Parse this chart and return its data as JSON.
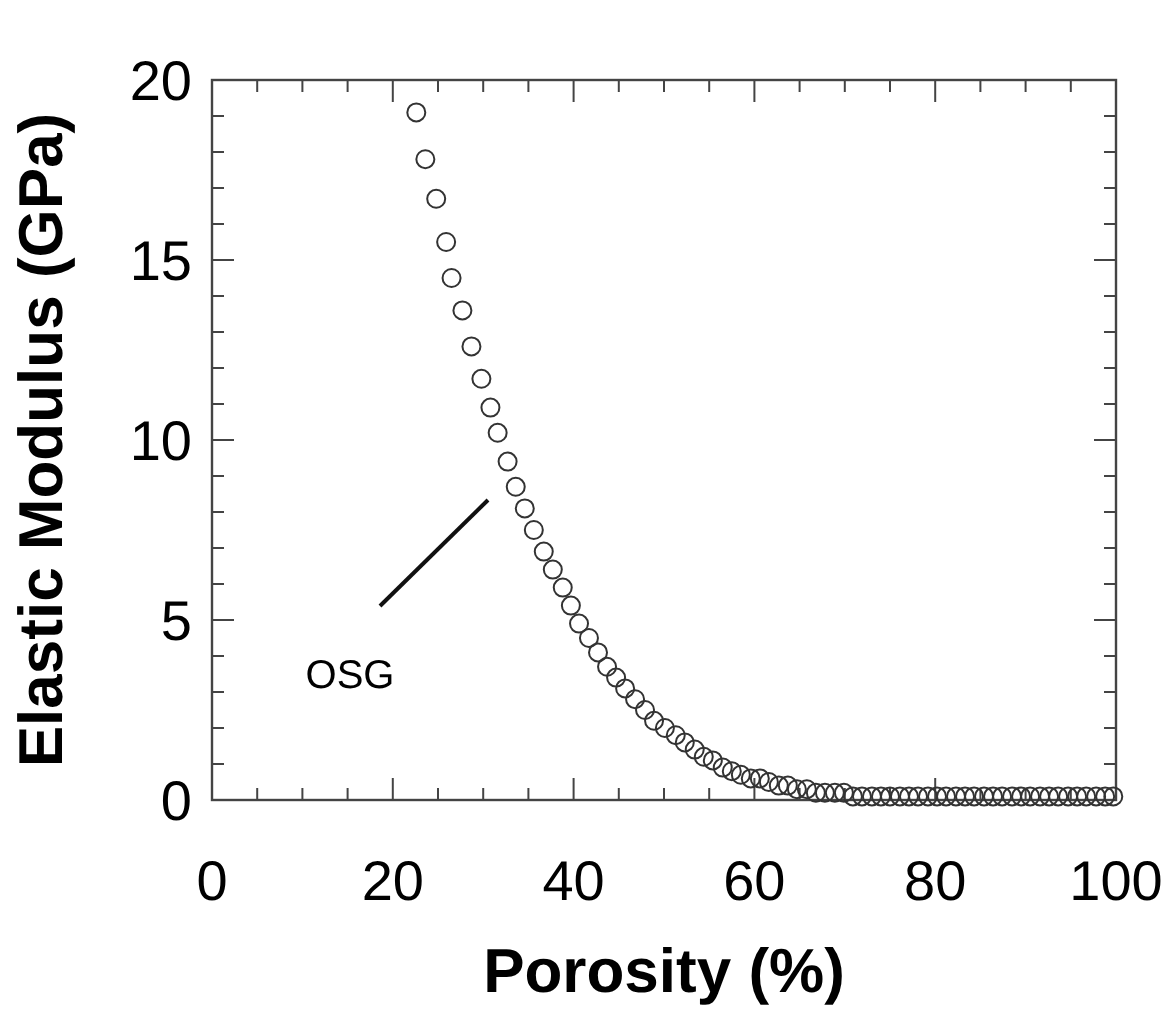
{
  "chart_data": {
    "type": "scatter",
    "xlabel": "Porosity (%)",
    "ylabel": "Elastic Modulus (GPa)",
    "marker": "circle",
    "xlim": [
      0,
      100
    ],
    "ylim": [
      0,
      20
    ],
    "xticks": [
      0,
      {
        "value": 5,
        "label": null
      },
      {
        "value": 10,
        "label": null
      },
      {
        "value": 15,
        "label": null
      },
      20,
      {
        "value": 25,
        "label": null
      },
      {
        "value": 30,
        "label": null
      },
      {
        "value": 35,
        "label": null
      },
      40,
      {
        "value": 45,
        "label": null
      },
      {
        "value": 50,
        "label": null
      },
      {
        "value": 55,
        "label": null
      },
      60,
      {
        "value": 65,
        "label": null
      },
      {
        "value": 70,
        "label": null
      },
      {
        "value": 75,
        "label": null
      },
      80,
      {
        "value": 85,
        "label": null
      },
      {
        "value": 90,
        "label": null
      },
      {
        "value": 95,
        "label": null
      },
      100
    ],
    "yticks": [
      0,
      {
        "value": 1,
        "label": null
      },
      {
        "value": 2,
        "label": null
      },
      {
        "value": 3,
        "label": null
      },
      {
        "value": 4,
        "label": null
      },
      5,
      {
        "value": 6,
        "label": null
      },
      {
        "value": 7,
        "label": null
      },
      {
        "value": 8,
        "label": null
      },
      {
        "value": 9,
        "label": null
      },
      10,
      {
        "value": 11,
        "label": null
      },
      {
        "value": 12,
        "label": null
      },
      {
        "value": 13,
        "label": null
      },
      {
        "value": 14,
        "label": null
      },
      15,
      {
        "value": 16,
        "label": null
      },
      {
        "value": 17,
        "label": null
      },
      {
        "value": 18,
        "label": null
      },
      {
        "value": 19,
        "label": null
      },
      20
    ],
    "annotations": [
      "OSG"
    ],
    "series": [
      {
        "color": "#333333",
        "x": [
          22.6,
          23.6,
          24.8,
          25.9,
          26.5,
          27.7,
          28.7,
          29.8,
          30.8,
          31.6,
          32.7,
          33.6,
          34.6,
          35.6,
          36.7,
          37.7,
          38.8,
          39.7,
          40.6,
          41.7,
          42.7,
          43.7,
          44.7,
          45.7,
          46.8,
          47.9,
          48.9,
          50.1,
          51.3,
          52.3,
          53.4,
          54.4,
          55.4,
          56.5,
          57.5,
          58.5,
          59.6,
          60.6,
          61.6,
          62.7,
          63.7,
          64.7,
          65.8,
          66.8,
          67.8,
          68.9,
          69.9,
          70.9,
          71.9,
          73.0,
          74.0,
          75.0,
          76.1,
          77.1,
          78.1,
          79.2,
          80.2,
          81.2,
          82.3,
          83.3,
          84.3,
          85.4,
          86.4,
          87.4,
          88.5,
          89.5,
          90.5,
          91.6,
          92.6,
          93.6,
          94.7,
          95.7,
          96.7,
          97.8,
          98.8,
          99.7
        ],
        "values": [
          19.1,
          17.8,
          16.7,
          15.5,
          14.5,
          13.6,
          12.6,
          11.7,
          10.9,
          10.2,
          9.4,
          8.7,
          8.1,
          7.5,
          6.9,
          6.4,
          5.9,
          5.4,
          4.9,
          4.5,
          4.1,
          3.7,
          3.4,
          3.1,
          2.8,
          2.5,
          2.2,
          2.0,
          1.8,
          1.6,
          1.4,
          1.2,
          1.1,
          0.9,
          0.8,
          0.7,
          0.6,
          0.6,
          0.5,
          0.4,
          0.4,
          0.3,
          0.3,
          0.2,
          0.2,
          0.2,
          0.2,
          0.1,
          0.1,
          0.1,
          0.1,
          0.1,
          0.1,
          0.1,
          0.1,
          0.1,
          0.1,
          0.1,
          0.1,
          0.1,
          0.1,
          0.1,
          0.1,
          0.1,
          0.1,
          0.1,
          0.1,
          0.1,
          0.1,
          0.1,
          0.1,
          0.1,
          0.1,
          0.1,
          0.1,
          0.1
        ]
      }
    ]
  }
}
